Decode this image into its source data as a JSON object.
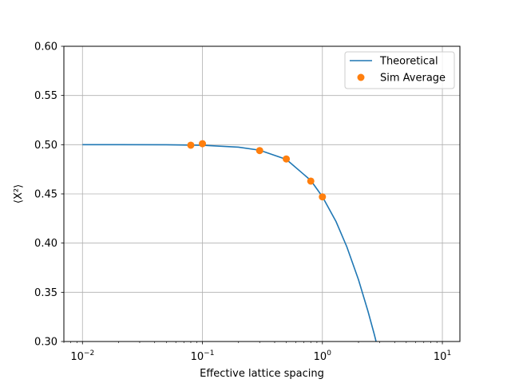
{
  "chart_data": {
    "type": "line",
    "title": "",
    "xlabel": "Effective lattice spacing",
    "ylabel": "⟨X²⟩",
    "xscale": "log",
    "xlim": [
      0.007,
      14
    ],
    "ylim": [
      0.3,
      0.6
    ],
    "grid": true,
    "legend_placement": "top-right",
    "x_ticks": [
      {
        "value": 0.01,
        "base": "10",
        "exp": "−2"
      },
      {
        "value": 0.1,
        "base": "10",
        "exp": "−1"
      },
      {
        "value": 1,
        "base": "10",
        "exp": "0"
      },
      {
        "value": 10,
        "base": "10",
        "exp": "1"
      }
    ],
    "y_ticks": [
      "0.30",
      "0.35",
      "0.40",
      "0.45",
      "0.50",
      "0.55",
      "0.60"
    ],
    "series": [
      {
        "name": "Theoretical",
        "kind": "line",
        "color": "#1f77b4",
        "x": [
          0.01,
          0.02,
          0.05,
          0.1,
          0.2,
          0.3,
          0.5,
          0.8,
          1.0,
          1.3,
          1.6,
          2.0,
          2.4,
          2.7,
          3.0
        ],
        "y": [
          0.5,
          0.5,
          0.4999,
          0.4994,
          0.4975,
          0.4944,
          0.4851,
          0.4637,
          0.4472,
          0.4218,
          0.3961,
          0.3627,
          0.3306,
          0.3078,
          0.2858
        ]
      },
      {
        "name": "Sim Average",
        "kind": "scatter",
        "color": "#ff7f0e",
        "x": [
          0.08,
          0.1,
          0.3,
          0.5,
          0.8,
          1.0
        ],
        "y": [
          0.4995,
          0.501,
          0.494,
          0.4855,
          0.463,
          0.447
        ]
      }
    ]
  }
}
